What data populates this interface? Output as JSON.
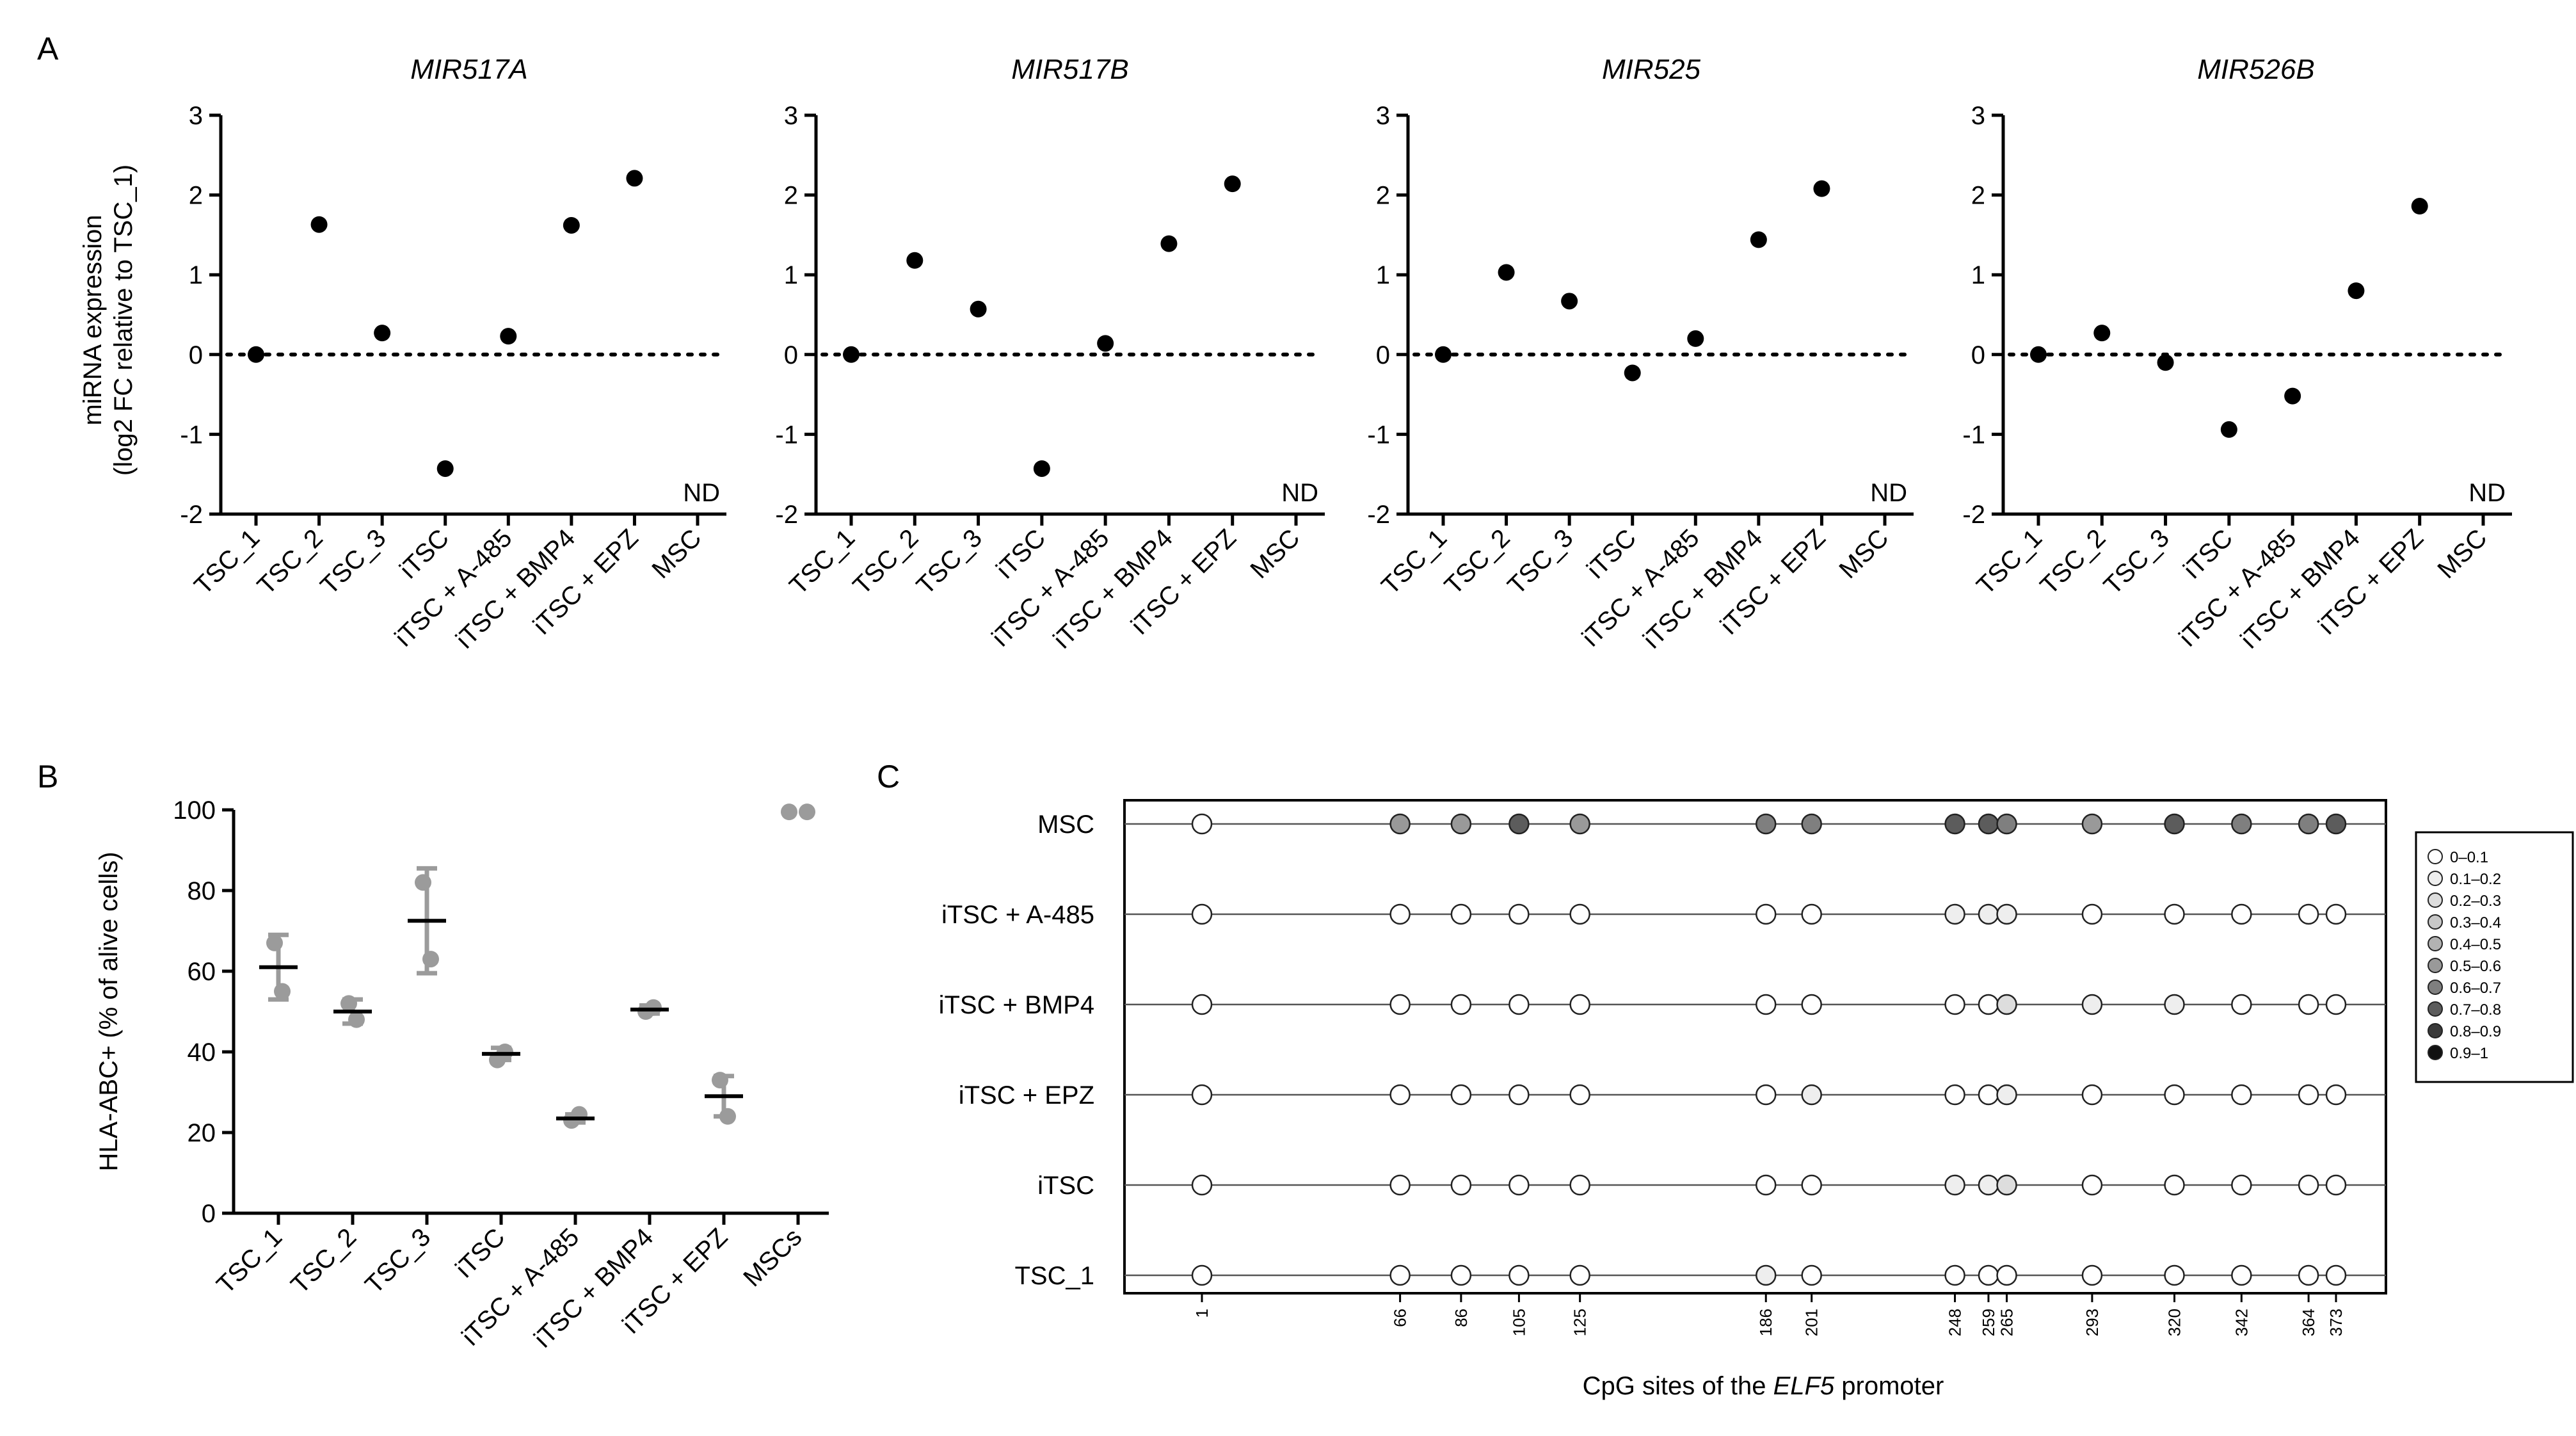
{
  "panel_letters": [
    "A",
    "B",
    "C"
  ],
  "chart_data": [
    {
      "id": "A1",
      "type": "scatter",
      "title": "MIR517A",
      "categories": [
        "TSC_1",
        "TSC_2",
        "TSC_3",
        "iTSC",
        "iTSC + A-485",
        "iTSC + BMP4",
        "iTSC + EPZ",
        "MSC"
      ],
      "values": [
        0,
        1.63,
        0.27,
        -1.43,
        0.23,
        1.62,
        2.21,
        null
      ],
      "annotation": "ND",
      "ylabel": "miRNA expression (log2 FC relative to TSC_1)",
      "ylabel_line1": "miRNA expression",
      "ylabel_line2": "(log2 FC relative to TSC_1)",
      "ylim": [
        -2,
        3
      ],
      "yticks": [
        "-2",
        "-1",
        "0",
        "1",
        "2",
        "3"
      ],
      "reference_line": 0
    },
    {
      "id": "A2",
      "type": "scatter",
      "title": "MIR517B",
      "categories": [
        "TSC_1",
        "TSC_2",
        "TSC_3",
        "iTSC",
        "iTSC + A-485",
        "iTSC + BMP4",
        "iTSC + EPZ",
        "MSC"
      ],
      "values": [
        0,
        1.18,
        0.57,
        -1.43,
        0.14,
        1.39,
        2.14,
        null
      ],
      "annotation": "ND",
      "ylim": [
        -2,
        3
      ],
      "yticks": [
        "-2",
        "-1",
        "0",
        "1",
        "2",
        "3"
      ],
      "reference_line": 0
    },
    {
      "id": "A3",
      "type": "scatter",
      "title": "MIR525",
      "categories": [
        "TSC_1",
        "TSC_2",
        "TSC_3",
        "iTSC",
        "iTSC + A-485",
        "iTSC + BMP4",
        "iTSC + EPZ",
        "MSC"
      ],
      "values": [
        0,
        1.03,
        0.67,
        -0.23,
        0.2,
        1.44,
        2.08,
        null
      ],
      "annotation": "ND",
      "ylim": [
        -2,
        3
      ],
      "yticks": [
        "-2",
        "-1",
        "0",
        "1",
        "2",
        "3"
      ],
      "reference_line": 0
    },
    {
      "id": "A4",
      "type": "scatter",
      "title": "MIR526B",
      "categories": [
        "TSC_1",
        "TSC_2",
        "TSC_3",
        "iTSC",
        "iTSC + A-485",
        "iTSC + BMP4",
        "iTSC + EPZ",
        "MSC"
      ],
      "values": [
        0,
        0.27,
        -0.1,
        -0.94,
        -0.52,
        0.8,
        1.86,
        null
      ],
      "annotation": "ND",
      "ylim": [
        -2,
        3
      ],
      "yticks": [
        "-2",
        "-1",
        "0",
        "1",
        "2",
        "3"
      ],
      "reference_line": 0
    },
    {
      "id": "B",
      "type": "scatter",
      "categories": [
        "TSC_1",
        "TSC_2",
        "TSC_3",
        "iTSC",
        "iTSC + A-485",
        "iTSC + BMP4",
        "iTSC + EPZ",
        "MSCs"
      ],
      "points": [
        [
          67,
          55
        ],
        [
          52,
          48
        ],
        [
          82,
          63
        ],
        [
          38,
          40
        ],
        [
          23,
          24.5
        ],
        [
          50,
          51
        ],
        [
          33,
          24
        ],
        [
          99.5,
          99.5
        ]
      ],
      "means": [
        61,
        50,
        72.5,
        39.5,
        23.5,
        50.5,
        29,
        null
      ],
      "error_low": [
        53,
        47,
        59.5,
        38,
        22.5,
        49.5,
        24,
        null
      ],
      "error_high": [
        69,
        53,
        85.5,
        41,
        24.5,
        51.5,
        34,
        null
      ],
      "ylabel": "HLA-ABC+ (% of alive cells)",
      "ylim": [
        0,
        100
      ],
      "yticks": [
        "0",
        "20",
        "40",
        "60",
        "80",
        "100"
      ],
      "point_color": "#9b9b9b"
    },
    {
      "id": "C",
      "type": "heatmap",
      "rows": [
        "MSC",
        "iTSC + A-485",
        "iTSC + BMP4",
        "iTSC + EPZ",
        "iTSC",
        "TSC_1"
      ],
      "cpg_sites": [
        1,
        66,
        86,
        105,
        125,
        186,
        201,
        248,
        259,
        265,
        293,
        320,
        342,
        364,
        373
      ],
      "cpg_site_labels": [
        "1",
        "66",
        "86",
        "105",
        "125",
        "186",
        "201",
        "248",
        "259",
        "265",
        "293",
        "320",
        "342",
        "364",
        "373"
      ],
      "xlabel_prefix": "CpG sites of the ",
      "xlabel_gene": "ELF5",
      "xlabel_suffix": " promoter",
      "methylation_bins": [
        [
          0.05,
          0.55,
          0.55,
          0.75,
          0.55,
          0.65,
          0.65,
          0.75,
          0.75,
          0.65,
          0.55,
          0.75,
          0.65,
          0.65,
          0.75
        ],
        [
          0.05,
          0.05,
          0.05,
          0.05,
          0.05,
          0.05,
          0.05,
          0.15,
          0.15,
          0.15,
          0.05,
          0.05,
          0.05,
          0.05,
          0.05
        ],
        [
          0.05,
          0.05,
          0.05,
          0.05,
          0.05,
          0.05,
          0.05,
          0.05,
          0.05,
          0.25,
          0.15,
          0.15,
          0.05,
          0.05,
          0.05
        ],
        [
          0.05,
          0.05,
          0.05,
          0.05,
          0.05,
          0.05,
          0.15,
          0.05,
          0.05,
          0.15,
          0.05,
          0.05,
          0.05,
          0.05,
          0.05
        ],
        [
          0.05,
          0.05,
          0.05,
          0.05,
          0.05,
          0.05,
          0.05,
          0.15,
          0.15,
          0.25,
          0.05,
          0.05,
          0.05,
          0.05,
          0.05
        ],
        [
          0.05,
          0.05,
          0.05,
          0.05,
          0.05,
          0.15,
          0.05,
          0.05,
          0.05,
          0.05,
          0.05,
          0.05,
          0.05,
          0.05,
          0.05
        ]
      ],
      "legend": [
        {
          "label": "0–0.1",
          "color": "#ffffff"
        },
        {
          "label": "0.1–0.2",
          "color": "#eeeeee"
        },
        {
          "label": "0.2–0.3",
          "color": "#dddddd"
        },
        {
          "label": "0.3–0.4",
          "color": "#c8c8c8"
        },
        {
          "label": "0.4–0.5",
          "color": "#b2b2b2"
        },
        {
          "label": "0.5–0.6",
          "color": "#999999"
        },
        {
          "label": "0.6–0.7",
          "color": "#7f7f7f"
        },
        {
          "label": "0.7–0.8",
          "color": "#5c5c5c"
        },
        {
          "label": "0.8–0.9",
          "color": "#3a3a3a"
        },
        {
          "label": "0.9–1",
          "color": "#111111"
        }
      ]
    }
  ]
}
